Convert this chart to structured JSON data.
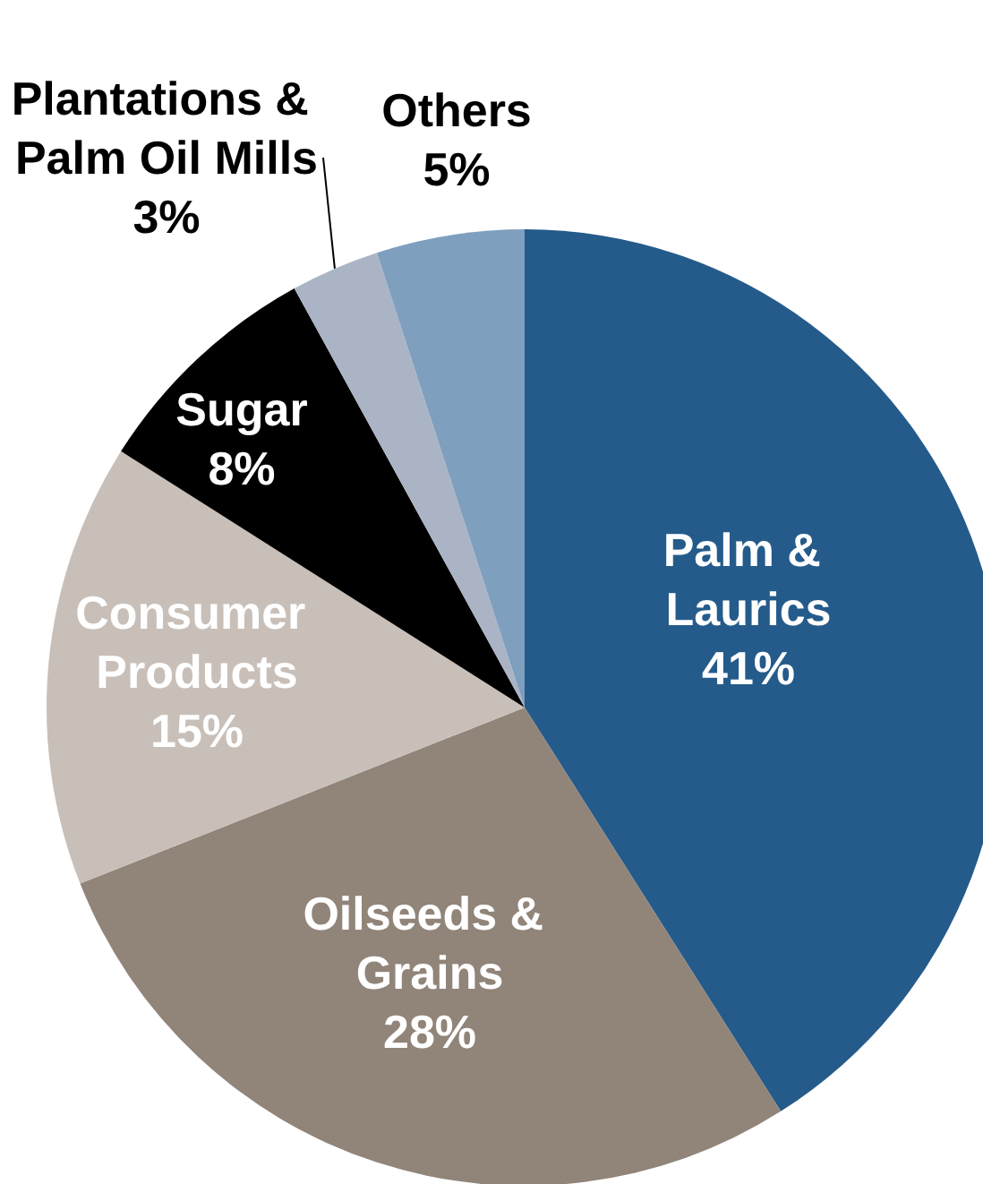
{
  "chart_data": {
    "type": "pie",
    "categories": [
      "Palm & Laurics",
      "Oilseeds & Grains",
      "Consumer Products",
      "Sugar",
      "Plantations & Palm Oil Mills",
      "Others"
    ],
    "values": [
      41,
      28,
      15,
      8,
      3,
      5
    ],
    "value_labels": [
      "41%",
      "28%",
      "15%",
      "8%",
      "3%",
      "5%"
    ],
    "colors": [
      "#245b8a",
      "#918479",
      "#c8bfb8",
      "#000000",
      "#aab4c4",
      "#7f9fbf"
    ],
    "legend": false
  }
}
